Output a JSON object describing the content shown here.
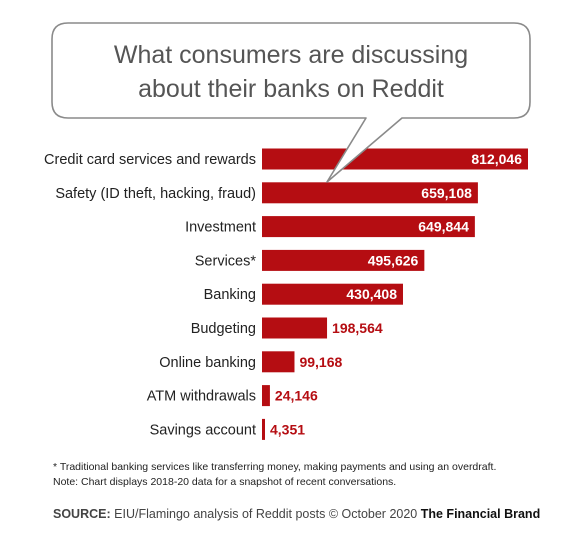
{
  "chart_data": {
    "type": "bar",
    "orientation": "horizontal",
    "title": "What consumers are discussing about their banks on Reddit",
    "title_lines": [
      "What consumers are discussing",
      "about their banks on Reddit"
    ],
    "categories": [
      "Credit card services and rewards",
      "Safety (ID theft, hacking, fraud)",
      "Investment",
      "Services*",
      "Banking",
      "Budgeting",
      "Online banking",
      "ATM withdrawals",
      "Savings account"
    ],
    "values": [
      812046,
      659108,
      649844,
      495626,
      430408,
      198564,
      99168,
      24146,
      4351
    ],
    "value_labels": [
      "812,046",
      "659,108",
      "649,844",
      "495,626",
      "430,408",
      "198,564",
      "99,168",
      "24,146",
      "4,351"
    ],
    "xlim": [
      0,
      812046
    ],
    "grid": false,
    "legend": "none",
    "bar_color": "#b50d12",
    "label_color_inside": "#ffffff",
    "label_color_outside": "#b50d12"
  },
  "notes": {
    "footnote": "* Traditional banking services like transferring money, making payments and using an overdraft.",
    "note": "Note: Chart displays 2018-20 data for a snapshot of recent conversations."
  },
  "source": {
    "label": "SOURCE:",
    "text": "EIU/Flamingo analysis of Reddit posts © October 2020",
    "brand": "The Financial Brand"
  }
}
